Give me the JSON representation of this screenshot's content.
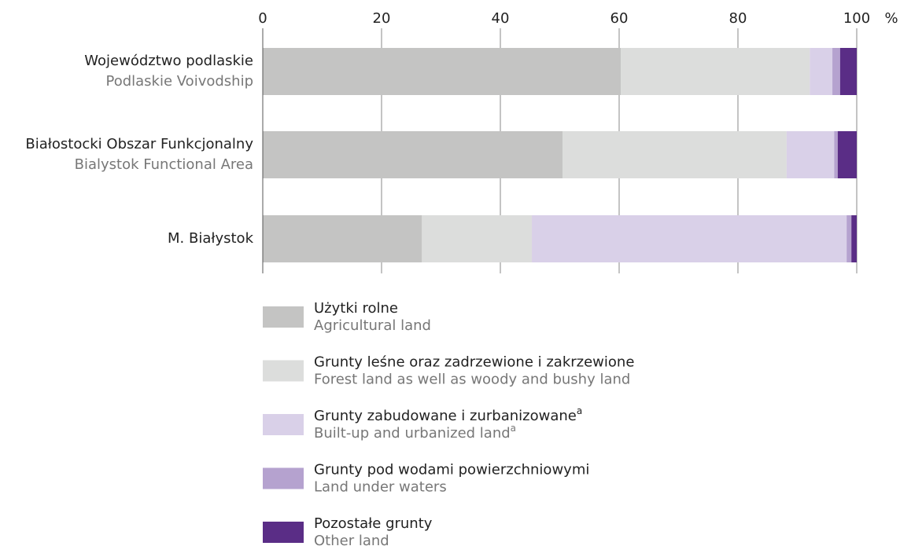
{
  "chart_data": {
    "type": "stacked_bar_horizontal",
    "categories": [
      "Województwo podlaskie",
      "Białostocki Obszar Funkcjonalny",
      "M. Białystok"
    ],
    "categories_en": [
      "Podlaskie Voivodship",
      "Bialystok Functional Area",
      null
    ],
    "x_unit": "%",
    "xlim": [
      0,
      100
    ],
    "xticks": [
      0,
      20,
      40,
      60,
      80,
      100
    ],
    "grid": true,
    "series": [
      {
        "name": "Użytki rolne",
        "name_en": "Agricultural land",
        "color": "#c4c4c3",
        "values": [
          60.3,
          50.5,
          26.8
        ]
      },
      {
        "name": "Grunty leśne oraz zadrzewione i zakrzewione",
        "name_en": "Forest land as well as woody and bushy land",
        "color": "#dcdddc",
        "values": [
          31.8,
          37.7,
          18.5
        ]
      },
      {
        "name": "Grunty zabudowane i zurbanizowane",
        "name_en": "Built-up and urbanized land",
        "note": "a",
        "color": "#d9d0e8",
        "values": [
          3.8,
          8.0,
          53.0
        ]
      },
      {
        "name": "Grunty pod wodami powierzchniowymi",
        "name_en": "Land under waters",
        "color": "#b5a2cf",
        "values": [
          1.3,
          0.6,
          0.8
        ]
      },
      {
        "name": "Pozostałe grunty",
        "name_en": "Other land",
        "color": "#5a2d86",
        "values": [
          2.8,
          3.2,
          0.9
        ]
      }
    ]
  }
}
